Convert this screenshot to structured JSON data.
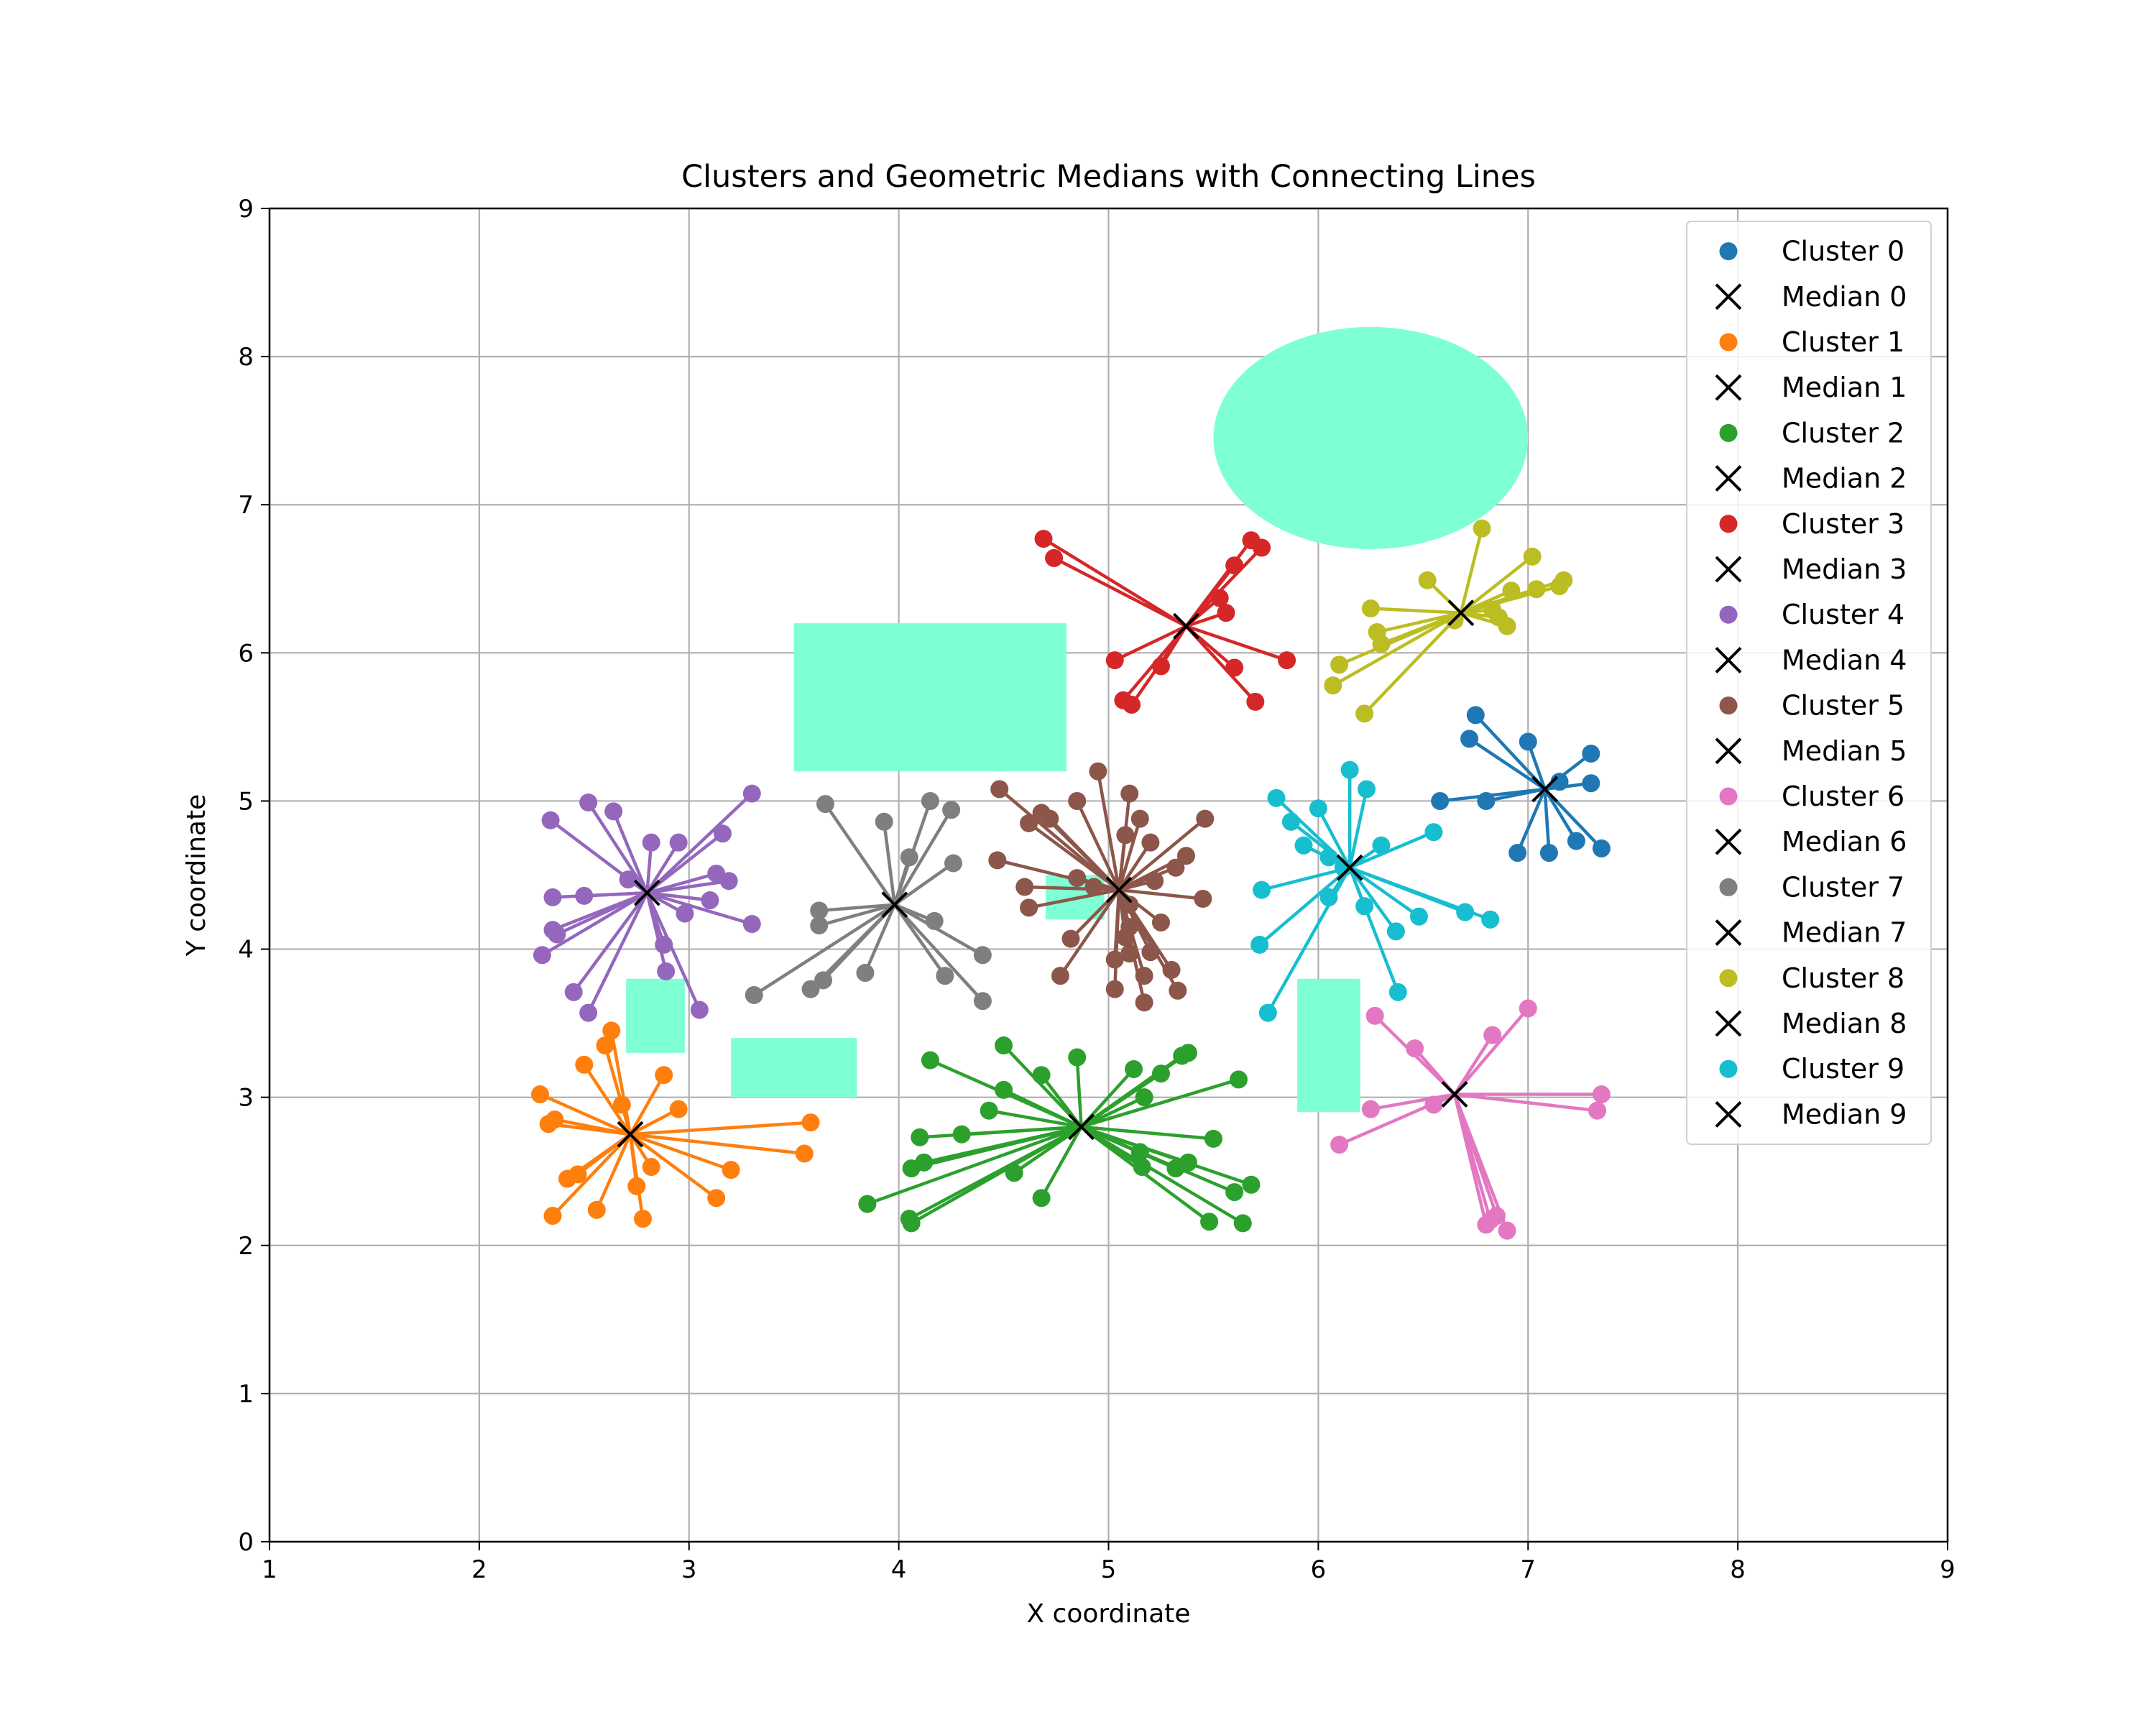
{
  "chart_data": {
    "type": "scatter",
    "title": "Clusters and Geometric Medians with Connecting Lines",
    "xlabel": "X coordinate",
    "ylabel": "Y coordinate",
    "xlim": [
      1,
      9
    ],
    "ylim": [
      0,
      9
    ],
    "xticks": [
      "1",
      "2",
      "3",
      "4",
      "5",
      "6",
      "7",
      "8",
      "9"
    ],
    "yticks": [
      "0",
      "1",
      "2",
      "3",
      "4",
      "5",
      "6",
      "7",
      "8",
      "9"
    ],
    "grid": true,
    "legend_position": "upper right",
    "obstacle_color": "#7fffd4",
    "obstacles": [
      {
        "shape": "ellipse",
        "cx": 6.25,
        "cy": 7.45,
        "rx": 0.75,
        "ry": 0.75
      },
      {
        "shape": "rect",
        "x0": 3.5,
        "x1": 4.8,
        "y0": 5.2,
        "y1": 6.2
      },
      {
        "shape": "rect",
        "x0": 4.7,
        "x1": 4.98,
        "y0": 4.2,
        "y1": 4.5
      },
      {
        "shape": "rect",
        "x0": 2.7,
        "x1": 2.98,
        "y0": 3.3,
        "y1": 3.8
      },
      {
        "shape": "rect",
        "x0": 3.2,
        "x1": 3.8,
        "y0": 3.0,
        "y1": 3.4
      },
      {
        "shape": "rect",
        "x0": 5.9,
        "x1": 6.2,
        "y0": 2.9,
        "y1": 3.8
      }
    ],
    "series": [
      {
        "name": "Cluster 0",
        "median_name": "Median 0",
        "color": "#1f77b4",
        "median": [
          7.08,
          5.08
        ],
        "points": [
          [
            6.75,
            5.58
          ],
          [
            6.72,
            5.42
          ],
          [
            7.0,
            5.4
          ],
          [
            7.3,
            5.32
          ],
          [
            7.3,
            5.12
          ],
          [
            7.15,
            5.13
          ],
          [
            6.58,
            5.0
          ],
          [
            6.8,
            5.0
          ],
          [
            7.23,
            4.73
          ],
          [
            7.35,
            4.68
          ],
          [
            6.95,
            4.65
          ],
          [
            7.1,
            4.65
          ]
        ]
      },
      {
        "name": "Cluster 1",
        "median_name": "Median 1",
        "color": "#ff7f0e",
        "median": [
          2.72,
          2.75
        ],
        "points": [
          [
            2.63,
            3.45
          ],
          [
            2.6,
            3.35
          ],
          [
            2.5,
            3.22
          ],
          [
            2.88,
            3.15
          ],
          [
            2.29,
            3.02
          ],
          [
            2.68,
            2.95
          ],
          [
            2.36,
            2.85
          ],
          [
            2.33,
            2.82
          ],
          [
            2.95,
            2.92
          ],
          [
            3.58,
            2.83
          ],
          [
            3.55,
            2.62
          ],
          [
            2.82,
            2.53
          ],
          [
            3.2,
            2.51
          ],
          [
            2.42,
            2.45
          ],
          [
            2.47,
            2.48
          ],
          [
            2.75,
            2.4
          ],
          [
            3.13,
            2.32
          ],
          [
            2.56,
            2.24
          ],
          [
            2.35,
            2.2
          ],
          [
            2.78,
            2.18
          ]
        ]
      },
      {
        "name": "Cluster 2",
        "median_name": "Median 2",
        "color": "#2ca02c",
        "median": [
          4.87,
          2.8
        ],
        "points": [
          [
            4.5,
            3.35
          ],
          [
            4.85,
            3.27
          ],
          [
            4.15,
            3.25
          ],
          [
            5.38,
            3.3
          ],
          [
            5.35,
            3.28
          ],
          [
            5.12,
            3.19
          ],
          [
            5.25,
            3.16
          ],
          [
            4.68,
            3.15
          ],
          [
            5.62,
            3.12
          ],
          [
            4.5,
            3.05
          ],
          [
            5.17,
            3.0
          ],
          [
            4.43,
            2.91
          ],
          [
            4.1,
            2.73
          ],
          [
            4.3,
            2.75
          ],
          [
            5.5,
            2.72
          ],
          [
            5.15,
            2.63
          ],
          [
            5.38,
            2.56
          ],
          [
            5.16,
            2.53
          ],
          [
            5.32,
            2.52
          ],
          [
            4.06,
            2.52
          ],
          [
            4.12,
            2.56
          ],
          [
            4.55,
            2.49
          ],
          [
            5.68,
            2.41
          ],
          [
            5.6,
            2.36
          ],
          [
            4.68,
            2.32
          ],
          [
            3.85,
            2.28
          ],
          [
            4.06,
            2.15
          ],
          [
            4.05,
            2.18
          ],
          [
            5.48,
            2.16
          ],
          [
            5.64,
            2.15
          ]
        ]
      },
      {
        "name": "Cluster 3",
        "median_name": "Median 3",
        "color": "#d62728",
        "median": [
          5.37,
          6.18
        ],
        "points": [
          [
            4.69,
            6.77
          ],
          [
            4.74,
            6.64
          ],
          [
            5.68,
            6.76
          ],
          [
            5.73,
            6.71
          ],
          [
            5.6,
            6.59
          ],
          [
            5.53,
            6.37
          ],
          [
            5.56,
            6.27
          ],
          [
            5.03,
            5.95
          ],
          [
            5.85,
            5.95
          ],
          [
            5.25,
            5.91
          ],
          [
            5.6,
            5.9
          ],
          [
            5.07,
            5.68
          ],
          [
            5.11,
            5.65
          ],
          [
            5.7,
            5.67
          ]
        ]
      },
      {
        "name": "Cluster 4",
        "median_name": "Median 4",
        "color": "#9467bd",
        "median": [
          2.8,
          4.38
        ],
        "points": [
          [
            2.52,
            4.99
          ],
          [
            2.64,
            4.93
          ],
          [
            2.34,
            4.87
          ],
          [
            3.3,
            5.05
          ],
          [
            3.16,
            4.78
          ],
          [
            2.82,
            4.72
          ],
          [
            2.95,
            4.72
          ],
          [
            3.13,
            4.51
          ],
          [
            3.19,
            4.46
          ],
          [
            2.71,
            4.47
          ],
          [
            2.5,
            4.36
          ],
          [
            2.35,
            4.35
          ],
          [
            3.1,
            4.33
          ],
          [
            2.98,
            4.24
          ],
          [
            3.3,
            4.17
          ],
          [
            2.35,
            4.13
          ],
          [
            2.37,
            4.1
          ],
          [
            2.88,
            4.03
          ],
          [
            2.3,
            3.96
          ],
          [
            2.89,
            3.85
          ],
          [
            2.45,
            3.71
          ],
          [
            3.05,
            3.59
          ],
          [
            2.52,
            3.57
          ]
        ]
      },
      {
        "name": "Cluster 5",
        "median_name": "Median 5",
        "color": "#8c564b",
        "median": [
          5.05,
          4.4
        ],
        "points": [
          [
            4.95,
            5.2
          ],
          [
            4.48,
            5.08
          ],
          [
            5.1,
            5.05
          ],
          [
            4.85,
            5.0
          ],
          [
            4.68,
            4.92
          ],
          [
            4.72,
            4.88
          ],
          [
            5.46,
            4.88
          ],
          [
            5.15,
            4.88
          ],
          [
            4.62,
            4.85
          ],
          [
            5.08,
            4.77
          ],
          [
            5.2,
            4.72
          ],
          [
            5.37,
            4.63
          ],
          [
            4.47,
            4.6
          ],
          [
            5.32,
            4.55
          ],
          [
            5.22,
            4.46
          ],
          [
            4.85,
            4.48
          ],
          [
            4.93,
            4.42
          ],
          [
            4.6,
            4.42
          ],
          [
            5.45,
            4.34
          ],
          [
            5.1,
            4.3
          ],
          [
            4.62,
            4.28
          ],
          [
            5.25,
            4.18
          ],
          [
            5.1,
            4.15
          ],
          [
            5.08,
            4.08
          ],
          [
            4.82,
            4.07
          ],
          [
            5.2,
            3.98
          ],
          [
            5.1,
            3.97
          ],
          [
            5.03,
            3.93
          ],
          [
            5.3,
            3.86
          ],
          [
            5.17,
            3.82
          ],
          [
            4.77,
            3.82
          ],
          [
            5.03,
            3.73
          ],
          [
            5.33,
            3.72
          ],
          [
            5.17,
            3.64
          ]
        ]
      },
      {
        "name": "Cluster 6",
        "median_name": "Median 6",
        "color": "#e377c2",
        "median": [
          6.65,
          3.02
        ],
        "points": [
          [
            7.0,
            3.6
          ],
          [
            6.27,
            3.55
          ],
          [
            6.83,
            3.42
          ],
          [
            6.46,
            3.33
          ],
          [
            7.35,
            3.02
          ],
          [
            7.33,
            2.91
          ],
          [
            6.25,
            2.92
          ],
          [
            6.55,
            2.95
          ],
          [
            6.1,
            2.68
          ],
          [
            6.85,
            2.2
          ],
          [
            6.82,
            2.17
          ],
          [
            6.8,
            2.14
          ],
          [
            6.9,
            2.1
          ]
        ]
      },
      {
        "name": "Cluster 7",
        "median_name": "Median 7",
        "color": "#7f7f7f",
        "median": [
          3.98,
          4.3
        ],
        "points": [
          [
            3.65,
            4.98
          ],
          [
            4.15,
            5.0
          ],
          [
            4.25,
            4.94
          ],
          [
            3.93,
            4.86
          ],
          [
            4.05,
            4.62
          ],
          [
            4.26,
            4.58
          ],
          [
            3.62,
            4.26
          ],
          [
            3.62,
            4.16
          ],
          [
            4.17,
            4.19
          ],
          [
            4.4,
            3.96
          ],
          [
            3.84,
            3.84
          ],
          [
            3.64,
            3.79
          ],
          [
            3.58,
            3.73
          ],
          [
            4.22,
            3.82
          ],
          [
            3.31,
            3.69
          ],
          [
            4.4,
            3.65
          ]
        ]
      },
      {
        "name": "Cluster 8",
        "median_name": "Median 8",
        "color": "#bcbd22",
        "median": [
          6.68,
          6.27
        ],
        "points": [
          [
            6.78,
            6.84
          ],
          [
            7.02,
            6.65
          ],
          [
            7.17,
            6.49
          ],
          [
            7.15,
            6.45
          ],
          [
            7.04,
            6.43
          ],
          [
            6.92,
            6.42
          ],
          [
            6.52,
            6.49
          ],
          [
            6.25,
            6.3
          ],
          [
            6.83,
            6.29
          ],
          [
            6.86,
            6.24
          ],
          [
            6.65,
            6.22
          ],
          [
            6.28,
            6.14
          ],
          [
            6.9,
            6.18
          ],
          [
            6.3,
            6.06
          ],
          [
            6.1,
            5.92
          ],
          [
            6.07,
            5.78
          ],
          [
            6.22,
            5.59
          ]
        ]
      },
      {
        "name": "Cluster 9",
        "median_name": "Median 9",
        "color": "#17becf",
        "median": [
          6.15,
          4.55
        ],
        "points": [
          [
            6.15,
            5.21
          ],
          [
            6.23,
            5.08
          ],
          [
            5.8,
            5.02
          ],
          [
            6.0,
            4.95
          ],
          [
            5.87,
            4.86
          ],
          [
            6.3,
            4.7
          ],
          [
            6.55,
            4.79
          ],
          [
            5.93,
            4.7
          ],
          [
            6.05,
            4.62
          ],
          [
            6.12,
            4.55
          ],
          [
            5.73,
            4.4
          ],
          [
            6.05,
            4.35
          ],
          [
            6.22,
            4.29
          ],
          [
            6.48,
            4.22
          ],
          [
            6.7,
            4.25
          ],
          [
            6.82,
            4.2
          ],
          [
            6.37,
            4.12
          ],
          [
            5.72,
            4.03
          ],
          [
            6.38,
            3.71
          ],
          [
            5.76,
            3.57
          ]
        ]
      }
    ]
  }
}
